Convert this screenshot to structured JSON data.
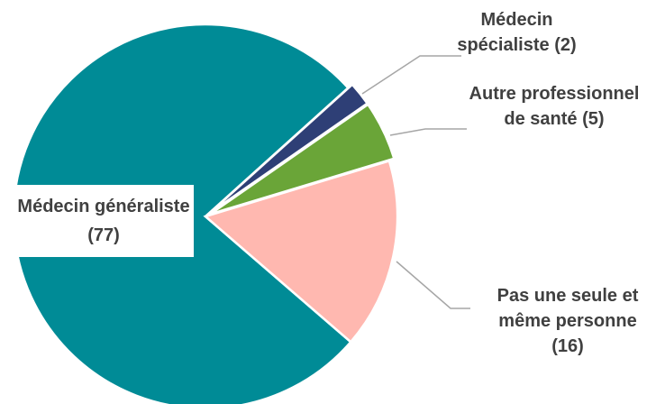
{
  "chart_data": {
    "type": "pie",
    "categories": [
      "Médecin spécialiste",
      "Autre professionnel de santé",
      "Pas une seule et même personne",
      "Médecin généraliste"
    ],
    "values": [
      2,
      5,
      16,
      77
    ],
    "value_labels": [
      "(2)",
      "(5)",
      "(16)",
      "(77)"
    ],
    "colors": [
      "#2e3f76",
      "#6aa538",
      "#ffb8b0",
      "#008b96"
    ]
  }
}
